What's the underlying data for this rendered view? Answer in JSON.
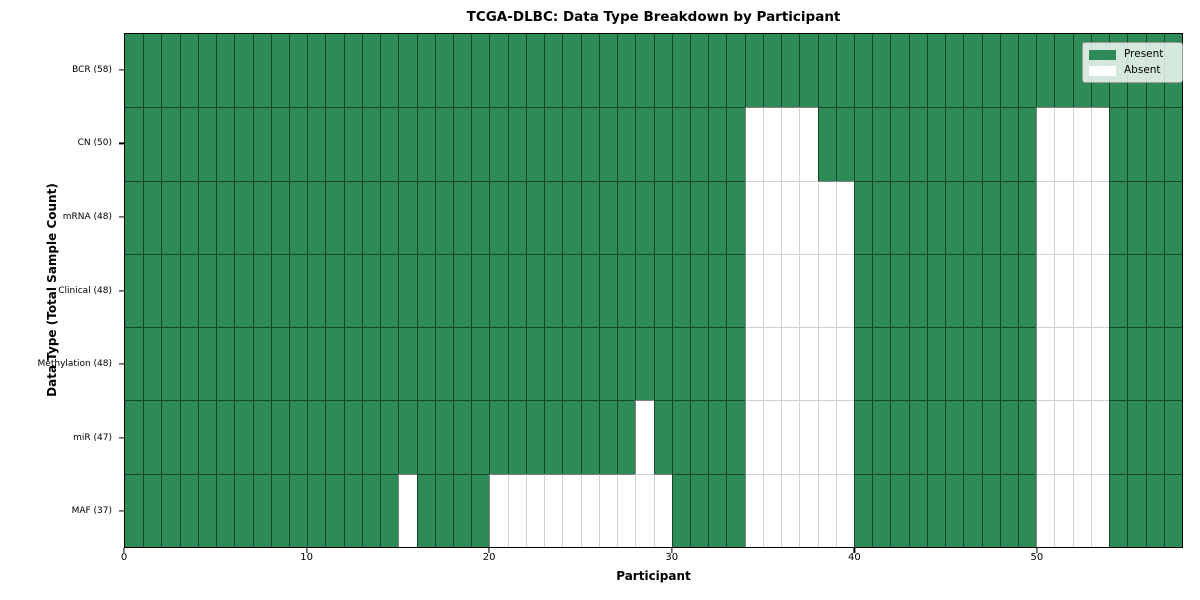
{
  "title": "TCGA-DLBC: Data Type Breakdown by Participant",
  "axes": {
    "xlabel": "Participant",
    "ylabel": "Data Type (Total Sample Count)",
    "x_ticks": [
      0,
      10,
      20,
      30,
      40,
      50
    ],
    "x_range": [
      0,
      58
    ]
  },
  "legend": {
    "items": [
      {
        "label": "Present",
        "color": "#2e8b57"
      },
      {
        "label": "Absent",
        "color": "#ffffff"
      }
    ]
  },
  "chart_data": {
    "type": "heatmap",
    "n_participants": 58,
    "x_axis": "Participant index 0-57, one column per participant",
    "present_color": "#2e8b57",
    "absent_color": "#ffffff",
    "rows": [
      {
        "label": "BCR (58)",
        "data_type": "BCR",
        "total_samples": 58,
        "absent_participants": []
      },
      {
        "label": "CN (50)",
        "data_type": "CN",
        "total_samples": 50,
        "absent_participants": [
          34,
          35,
          36,
          37,
          50,
          51,
          52,
          53
        ]
      },
      {
        "label": "mRNA (48)",
        "data_type": "mRNA",
        "total_samples": 48,
        "absent_participants": [
          34,
          35,
          36,
          37,
          38,
          39,
          50,
          51,
          52,
          53
        ]
      },
      {
        "label": "Clinical (48)",
        "data_type": "Clinical",
        "total_samples": 48,
        "absent_participants": [
          34,
          35,
          36,
          37,
          38,
          39,
          50,
          51,
          52,
          53
        ]
      },
      {
        "label": "Methylation (48)",
        "data_type": "Methylation",
        "total_samples": 48,
        "absent_participants": [
          34,
          35,
          36,
          37,
          38,
          39,
          50,
          51,
          52,
          53
        ]
      },
      {
        "label": "miR (47)",
        "data_type": "miR",
        "total_samples": 47,
        "absent_participants": [
          28,
          34,
          35,
          36,
          37,
          38,
          39,
          50,
          51,
          52,
          53
        ]
      },
      {
        "label": "MAF (37)",
        "data_type": "MAF",
        "total_samples": 37,
        "absent_participants": [
          15,
          20,
          21,
          22,
          23,
          24,
          25,
          26,
          27,
          28,
          29,
          34,
          35,
          36,
          37,
          38,
          39,
          50,
          51,
          52,
          53
        ]
      }
    ]
  },
  "grid_line_colors": {
    "dark": "rgba(0,0,0,0.5)",
    "light": "rgba(0,0,0,0.18)"
  }
}
